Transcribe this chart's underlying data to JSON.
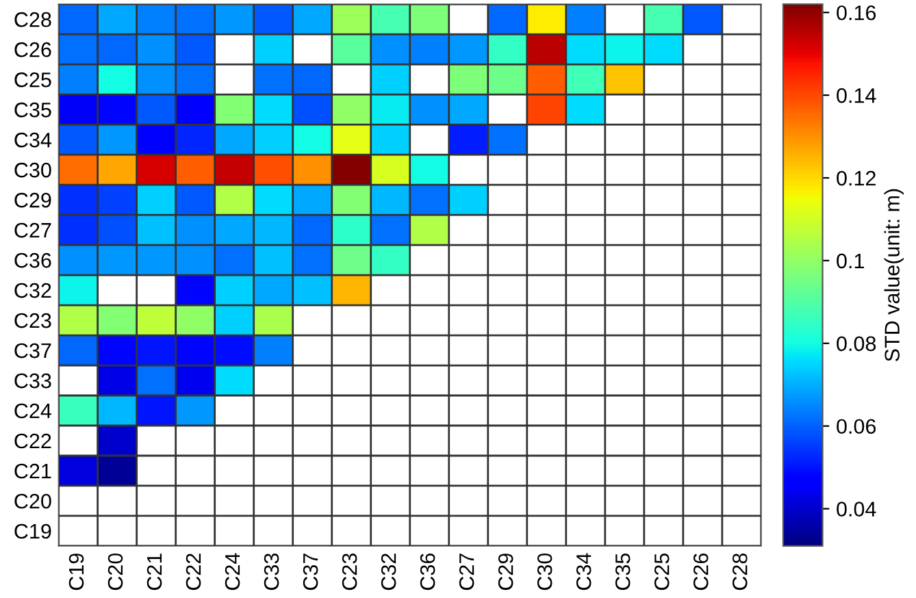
{
  "chart_data": {
    "type": "heatmap",
    "clabel": "STD value(unit: m)",
    "categories": [
      "C19",
      "C20",
      "C21",
      "C22",
      "C24",
      "C33",
      "C37",
      "C23",
      "C32",
      "C36",
      "C27",
      "C29",
      "C30",
      "C34",
      "C35",
      "C25",
      "C26",
      "C28"
    ],
    "y_categories": [
      "C28",
      "C26",
      "C25",
      "C35",
      "C34",
      "C30",
      "C29",
      "C27",
      "C36",
      "C32",
      "C23",
      "C37",
      "C33",
      "C24",
      "C22",
      "C21",
      "C20",
      "C19"
    ],
    "cells": [
      [
        0.061,
        0.069,
        0.064,
        0.062,
        0.067,
        0.059,
        0.069,
        0.102,
        0.088,
        0.097,
        null,
        0.061,
        0.117,
        0.064,
        null,
        0.088,
        0.059,
        null
      ],
      [
        0.062,
        0.061,
        0.066,
        0.059,
        null,
        0.074,
        null,
        0.091,
        0.066,
        0.064,
        0.067,
        0.085,
        0.155,
        0.076,
        0.079,
        0.076,
        null,
        null
      ],
      [
        0.064,
        0.08,
        0.066,
        0.062,
        null,
        0.062,
        0.061,
        null,
        0.074,
        null,
        0.097,
        0.094,
        0.137,
        0.087,
        0.123,
        null,
        null,
        null
      ],
      [
        0.045,
        0.048,
        0.059,
        0.046,
        0.098,
        0.076,
        0.058,
        0.1,
        0.078,
        0.066,
        0.069,
        null,
        0.141,
        0.076,
        null,
        null,
        null,
        null
      ],
      [
        0.059,
        0.067,
        0.047,
        0.052,
        0.069,
        0.074,
        0.08,
        0.113,
        0.074,
        null,
        0.051,
        0.062,
        null,
        null,
        null,
        null,
        null,
        null
      ],
      [
        0.135,
        0.127,
        0.152,
        0.137,
        0.154,
        0.139,
        0.13,
        0.161,
        0.111,
        0.08,
        null,
        null,
        null,
        null,
        null,
        null,
        null,
        null
      ],
      [
        0.054,
        0.056,
        0.074,
        0.059,
        0.105,
        0.076,
        0.069,
        0.098,
        0.071,
        0.062,
        0.074,
        null,
        null,
        null,
        null,
        null,
        null,
        null
      ],
      [
        0.054,
        0.058,
        0.072,
        0.066,
        0.069,
        0.071,
        0.061,
        0.084,
        0.062,
        0.105,
        null,
        null,
        null,
        null,
        null,
        null,
        null,
        null
      ],
      [
        0.066,
        0.067,
        0.067,
        0.066,
        0.062,
        0.072,
        0.062,
        0.094,
        0.085,
        null,
        null,
        null,
        null,
        null,
        null,
        null,
        null,
        null
      ],
      [
        0.079,
        null,
        null,
        0.048,
        0.074,
        0.069,
        0.072,
        0.125,
        null,
        null,
        null,
        null,
        null,
        null,
        null,
        null,
        null,
        null
      ],
      [
        0.105,
        0.098,
        0.107,
        0.1,
        0.074,
        0.104,
        null,
        null,
        null,
        null,
        null,
        null,
        null,
        null,
        null,
        null,
        null,
        null
      ],
      [
        0.061,
        0.048,
        0.05,
        0.048,
        0.049,
        0.064,
        null,
        null,
        null,
        null,
        null,
        null,
        null,
        null,
        null,
        null,
        null,
        null
      ],
      [
        null,
        0.043,
        0.062,
        0.044,
        0.076,
        null,
        null,
        null,
        null,
        null,
        null,
        null,
        null,
        null,
        null,
        null,
        null,
        null
      ],
      [
        0.086,
        0.071,
        0.05,
        0.067,
        null,
        null,
        null,
        null,
        null,
        null,
        null,
        null,
        null,
        null,
        null,
        null,
        null,
        null
      ],
      [
        null,
        0.04,
        null,
        null,
        null,
        null,
        null,
        null,
        null,
        null,
        null,
        null,
        null,
        null,
        null,
        null,
        null,
        null
      ],
      [
        0.042,
        0.034,
        null,
        null,
        null,
        null,
        null,
        null,
        null,
        null,
        null,
        null,
        null,
        null,
        null,
        null,
        null,
        null
      ],
      [
        null,
        null,
        null,
        null,
        null,
        null,
        null,
        null,
        null,
        null,
        null,
        null,
        null,
        null,
        null,
        null,
        null,
        null
      ],
      [
        null,
        null,
        null,
        null,
        null,
        null,
        null,
        null,
        null,
        null,
        null,
        null,
        null,
        null,
        null,
        null,
        null,
        null
      ]
    ],
    "clim": [
      0.031,
      0.162
    ],
    "cticks": [
      0.04,
      0.06,
      0.08,
      0.1,
      0.12,
      0.14,
      0.16
    ],
    "grid": true
  }
}
